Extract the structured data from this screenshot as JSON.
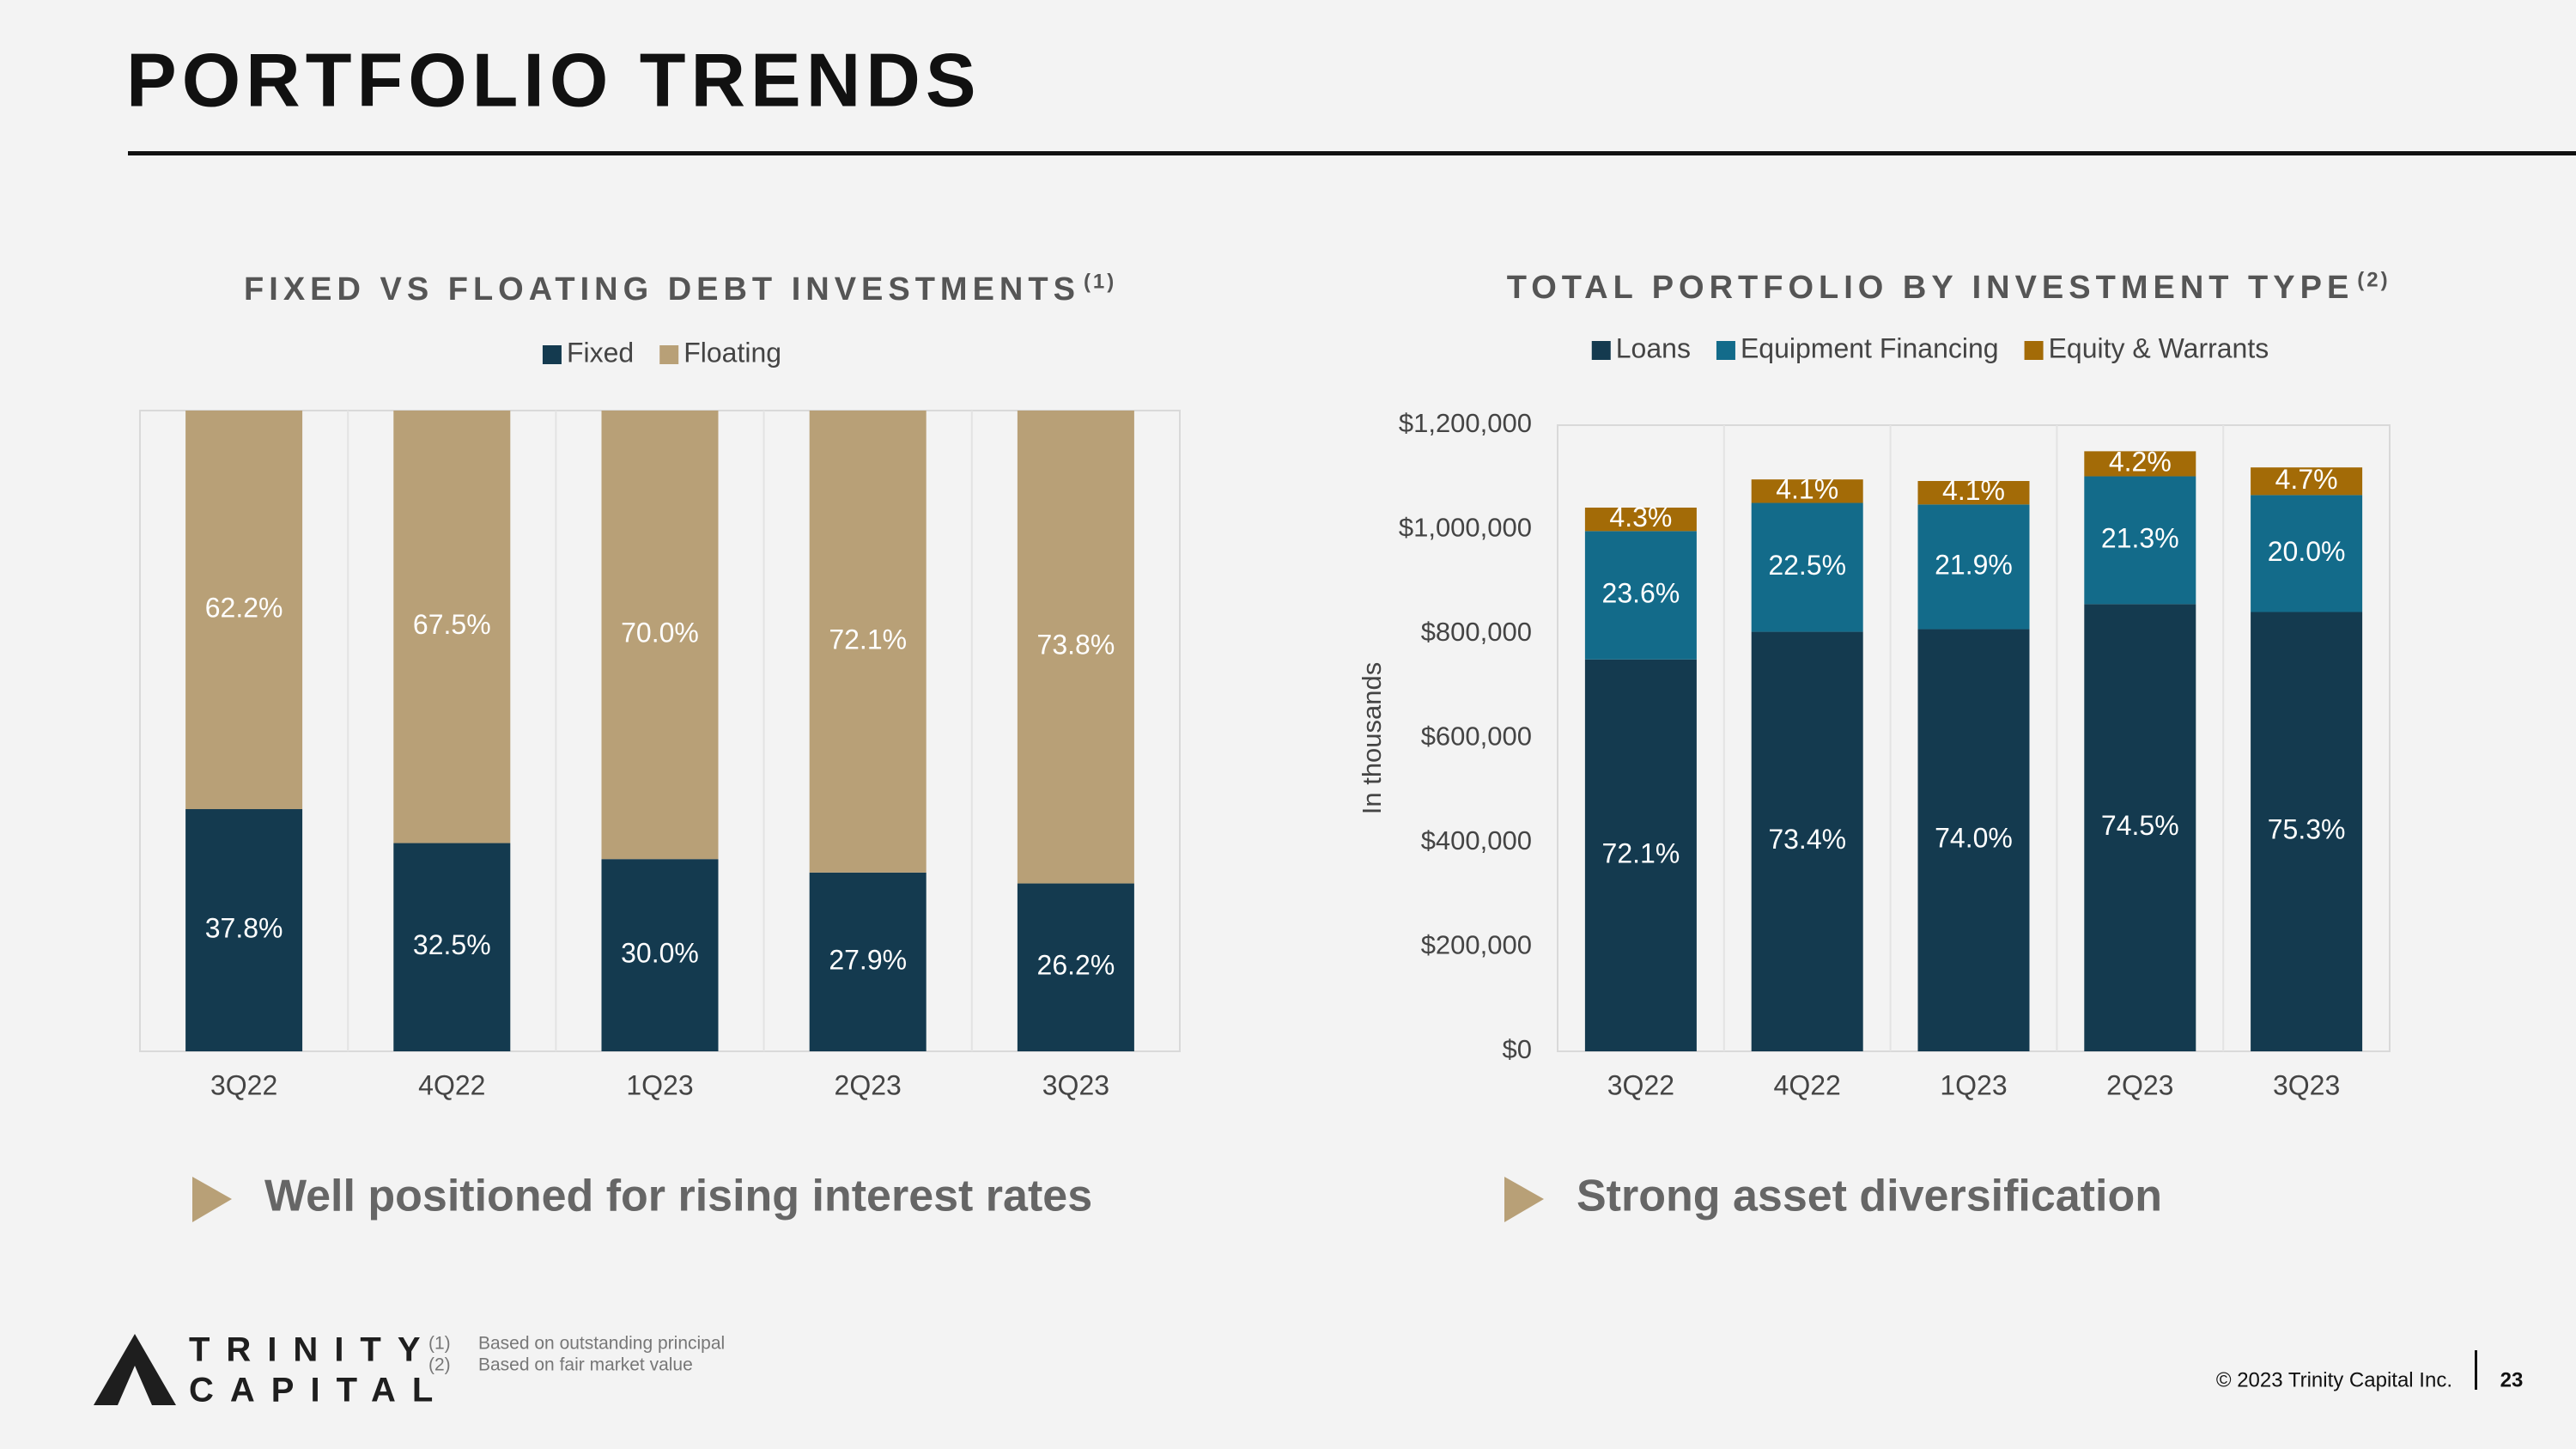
{
  "header": {
    "title": "PORTFOLIO TRENDS"
  },
  "chart_data": [
    {
      "type": "stacked_bar",
      "title": "FIXED VS FLOATING DEBT INVESTMENTS",
      "title_note": "(1)",
      "categories": [
        "3Q22",
        "4Q22",
        "1Q23",
        "2Q23",
        "3Q23"
      ],
      "ylim": [
        0,
        100
      ],
      "series": [
        {
          "name": "Fixed",
          "color": "#143a4f",
          "values": [
            37.8,
            32.5,
            30.0,
            27.9,
            26.2
          ],
          "value_labels": [
            "37.8%",
            "32.5%",
            "30.0%",
            "27.9%",
            "26.2%"
          ]
        },
        {
          "name": "Floating",
          "color": "#b8a077",
          "values": [
            62.2,
            67.5,
            70.0,
            72.1,
            73.8
          ],
          "value_labels": [
            "62.2%",
            "67.5%",
            "70.0%",
            "72.1%",
            "73.8%"
          ]
        }
      ]
    },
    {
      "type": "stacked_bar",
      "title": "TOTAL PORTFOLIO BY INVESTMENT TYPE",
      "title_note": "(2)",
      "y_label": "In thousands",
      "categories": [
        "3Q22",
        "4Q22",
        "1Q23",
        "2Q23",
        "3Q23"
      ],
      "ylim": [
        0,
        1200000
      ],
      "yticks": [
        {
          "value": 0,
          "label": "$0"
        },
        {
          "value": 200000,
          "label": "$200,000"
        },
        {
          "value": 400000,
          "label": "$400,000"
        },
        {
          "value": 600000,
          "label": "$600,000"
        },
        {
          "value": 800000,
          "label": "$800,000"
        },
        {
          "value": 1000000,
          "label": "$1,000,000"
        },
        {
          "value": 1200000,
          "label": "$1,200,000"
        }
      ],
      "series": [
        {
          "name": "Loans",
          "color": "#143a4f",
          "values": [
            751000,
            804000,
            809000,
            857000,
            842000
          ],
          "share_labels": [
            "72.1%",
            "73.4%",
            "74.0%",
            "74.5%",
            "75.3%"
          ]
        },
        {
          "name": "Equipment Financing",
          "color": "#136b8a",
          "values": [
            246000,
            247000,
            239000,
            245000,
            224000
          ],
          "share_labels": [
            "23.6%",
            "22.5%",
            "21.9%",
            "21.3%",
            "20.0%"
          ]
        },
        {
          "name": "Equity & Warrants",
          "color": "#a36b07",
          "values": [
            45000,
            45000,
            45000,
            48000,
            53000
          ],
          "share_labels": [
            "4.3%",
            "4.1%",
            "4.1%",
            "4.2%",
            "4.7%"
          ]
        }
      ]
    }
  ],
  "takeaways": [
    "Well positioned for rising interest rates",
    "Strong asset diversification"
  ],
  "logo": {
    "line1": "TRINITY",
    "line2": "CAPITAL"
  },
  "footnotes": [
    {
      "marker": "(1)",
      "text": "Based on outstanding principal"
    },
    {
      "marker": "(2)",
      "text": "Based on fair market value"
    }
  ],
  "footer": {
    "copyright": "© 2023 Trinity Capital Inc.",
    "page": 23
  }
}
